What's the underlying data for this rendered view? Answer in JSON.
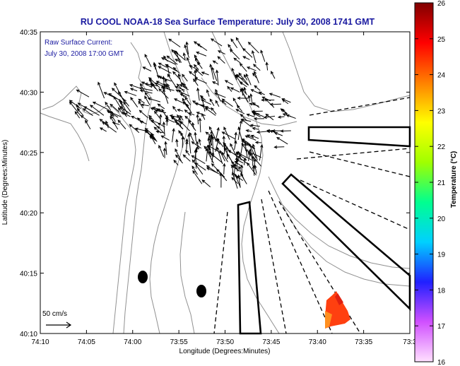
{
  "title": "RU COOL  NOAA-18  Sea Surface Temperature:  July 30, 2008 1741 GMT",
  "annotation": {
    "line1": "Raw Surface Current:",
    "line2": "July 30, 2008 17:00 GMT"
  },
  "scale_label": "50 cm/s",
  "axes": {
    "xlabel": "Longitude (Degrees:Minutes)",
    "ylabel": "Latitude (Degrees:Minutes)",
    "xticks": [
      "74:10",
      "74:05",
      "74:00",
      "73:55",
      "73:50",
      "73:45",
      "73:40",
      "73:35",
      "73:3"
    ],
    "yticks": [
      "40:35",
      "40:30",
      "40:25",
      "40:20",
      "40:15",
      "40:10"
    ]
  },
  "colorbar": {
    "label": "Temperature (°C)",
    "ticks": [
      "26",
      "25",
      "24",
      "23",
      "22",
      "21",
      "20",
      "19",
      "18",
      "17",
      "16"
    ],
    "colors": [
      "#ffe0ff",
      "#d050ff",
      "#2020ff",
      "#00d0ff",
      "#00ff90",
      "#a0ff00",
      "#ffff00",
      "#ff8000",
      "#ff0000",
      "#800000"
    ]
  },
  "map_colors": {
    "frame": "#000000",
    "contour": "#909090",
    "vector": "#000000",
    "sst_patch": "#ff4010"
  }
}
